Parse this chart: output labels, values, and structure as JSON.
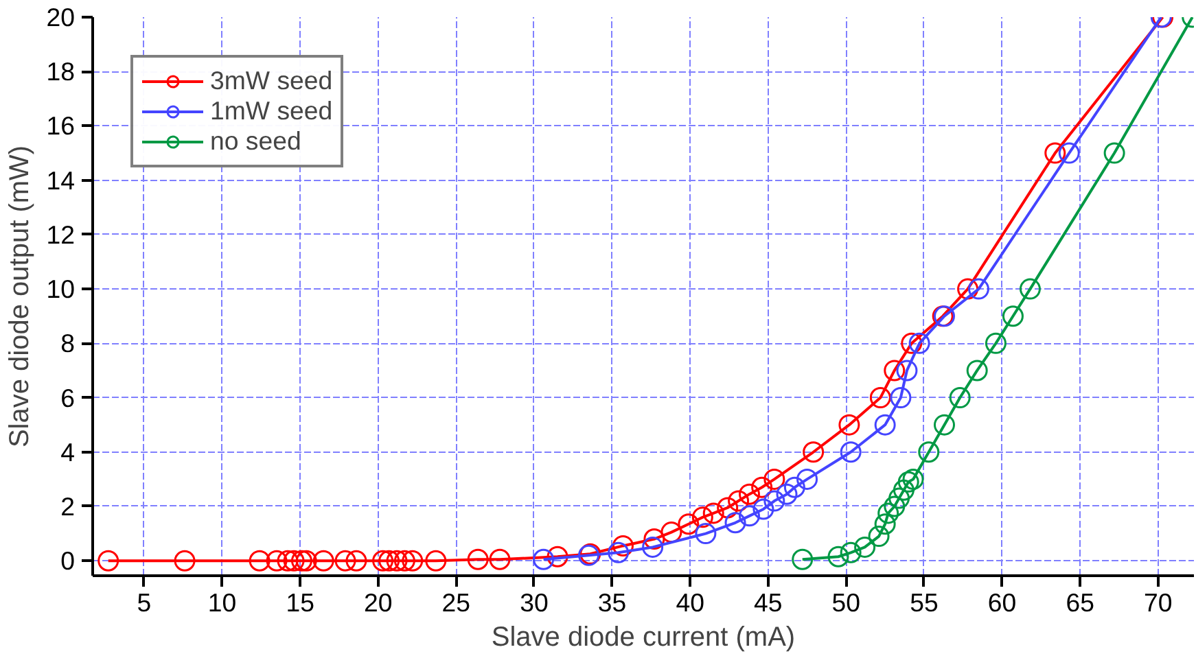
{
  "chart_data": {
    "type": "line",
    "xlabel": "Slave diode current (mA)",
    "ylabel": "Slave diode output (mW)",
    "xlim": [
      1.7,
      72.3
    ],
    "ylim": [
      -0.55,
      20
    ],
    "xticks": [
      5,
      10,
      15,
      20,
      25,
      30,
      35,
      40,
      45,
      50,
      55,
      60,
      65,
      70
    ],
    "yticks": [
      0,
      2,
      4,
      6,
      8,
      10,
      12,
      14,
      16,
      18,
      20
    ],
    "grid": true,
    "legend": "top left",
    "marker": "circle",
    "line_style": "solid",
    "series": [
      {
        "name": "3mW seed",
        "color": "#ff0000",
        "x": [
          2.7,
          7.6,
          12.4,
          13.5,
          14.2,
          14.6,
          15.1,
          15.4,
          16.5,
          17.9,
          18.6,
          20.3,
          20.7,
          21.2,
          21.7,
          22.2,
          23.7,
          26.4,
          27.8,
          31.5,
          33.6,
          35.7,
          37.7,
          38.8,
          39.9,
          40.8,
          41.5,
          42.4,
          43.1,
          43.8,
          44.6,
          45.4,
          47.9,
          50.2,
          52.2,
          53.1,
          54.2,
          56.2,
          57.8,
          63.4,
          70.3
        ],
        "values": [
          0,
          0,
          0,
          0,
          0,
          0,
          0,
          0,
          0,
          0,
          0,
          0,
          0,
          0,
          0,
          0,
          0,
          0.05,
          0.05,
          0.15,
          0.25,
          0.55,
          0.8,
          1.05,
          1.35,
          1.6,
          1.75,
          1.95,
          2.2,
          2.45,
          2.7,
          3.0,
          4.0,
          5.0,
          6.0,
          7.0,
          8.0,
          9.0,
          10.0,
          15.0,
          20.0
        ]
      },
      {
        "name": "1mW seed",
        "color": "#4444ff",
        "x": [
          30.6,
          33.5,
          35.4,
          37.6,
          41.0,
          42.9,
          43.8,
          44.7,
          45.4,
          46.2,
          46.7,
          47.5,
          50.3,
          52.5,
          53.5,
          53.9,
          54.7,
          56.3,
          58.5,
          64.3,
          70.2
        ],
        "values": [
          0.05,
          0.2,
          0.3,
          0.5,
          1.0,
          1.4,
          1.65,
          1.9,
          2.2,
          2.45,
          2.7,
          3.0,
          4.0,
          5.0,
          6.0,
          7.0,
          8.0,
          9.0,
          10.0,
          15.0,
          20.0
        ]
      },
      {
        "name": "no seed",
        "color": "#009944",
        "x": [
          47.2,
          49.5,
          50.3,
          51.2,
          52.1,
          52.5,
          52.7,
          53.1,
          53.4,
          53.7,
          54.0,
          54.3,
          55.3,
          56.3,
          57.3,
          58.4,
          59.6,
          60.7,
          61.8,
          67.2,
          72.2
        ],
        "values": [
          0.05,
          0.15,
          0.3,
          0.5,
          0.9,
          1.35,
          1.75,
          2.0,
          2.3,
          2.6,
          2.9,
          3.0,
          4.0,
          5.0,
          6.0,
          7.0,
          8.0,
          9.0,
          10.0,
          15.0,
          20.0
        ]
      }
    ]
  }
}
